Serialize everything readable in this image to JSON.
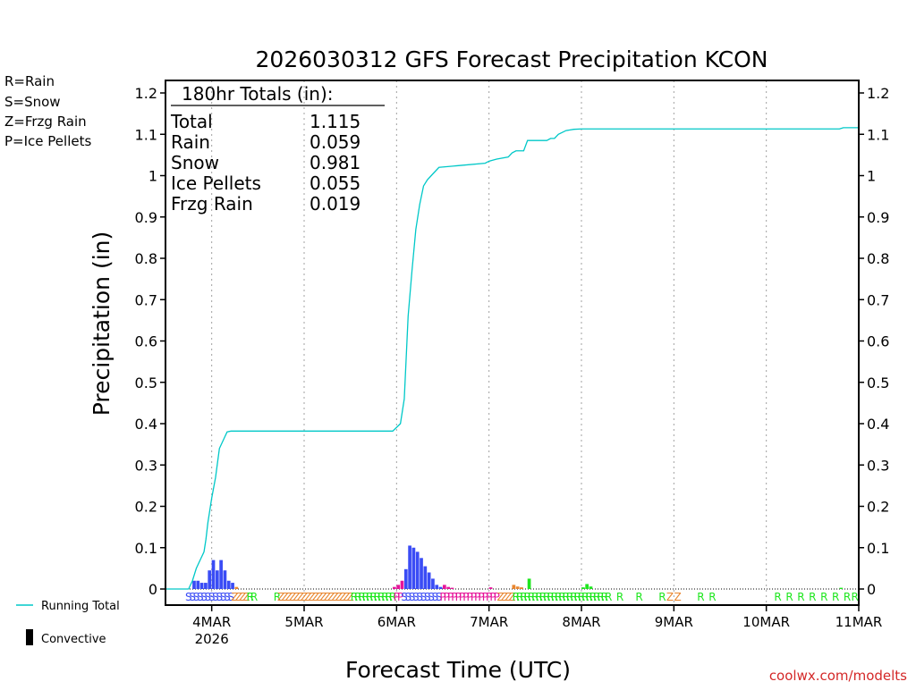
{
  "chart_data": {
    "type": "area",
    "title": "2026030312 GFS Forecast Precipitation KCON",
    "xlabel": "Forecast Time (UTC)",
    "ylabel": "Precipitation  (in)",
    "x_unit": "hours since 2026-03-04 00Z",
    "xlim": [
      -12,
      168
    ],
    "ylim": [
      0,
      1.2
    ],
    "y_ticks": [
      0,
      0.1,
      0.2,
      0.3,
      0.4,
      0.5,
      0.6,
      0.7,
      0.8,
      0.9,
      1,
      1.1,
      1.2
    ],
    "y_tick_labels": [
      "0",
      "0.1",
      "0.2",
      "0.3",
      "0.4",
      "0.5",
      "0.6",
      "0.7",
      "0.8",
      "0.9",
      "1",
      "1.1",
      "1.2"
    ],
    "x_ticks": [
      {
        "hour": 0,
        "label": "4MAR",
        "sublabel": "2026"
      },
      {
        "hour": 24,
        "label": "5MAR"
      },
      {
        "hour": 48,
        "label": "6MAR"
      },
      {
        "hour": 72,
        "label": "7MAR"
      },
      {
        "hour": 96,
        "label": "8MAR"
      },
      {
        "hour": 120,
        "label": "9MAR"
      },
      {
        "hour": 144,
        "label": "10MAR"
      },
      {
        "hour": 168,
        "label": "11MAR"
      }
    ],
    "series": [
      {
        "name": "Running Total",
        "color": "#00c8c8",
        "points": [
          [
            -12,
            0
          ],
          [
            -6,
            0
          ],
          [
            -5,
            0.02
          ],
          [
            -4,
            0.05
          ],
          [
            -3,
            0.07
          ],
          [
            -2,
            0.09
          ],
          [
            -1.5,
            0.12
          ],
          [
            -1,
            0.16
          ],
          [
            0,
            0.22
          ],
          [
            1,
            0.27
          ],
          [
            2,
            0.34
          ],
          [
            3,
            0.36
          ],
          [
            4,
            0.38
          ],
          [
            5,
            0.382
          ],
          [
            47,
            0.382
          ],
          [
            49,
            0.4
          ],
          [
            50,
            0.46
          ],
          [
            50.5,
            0.56
          ],
          [
            51,
            0.66
          ],
          [
            52,
            0.77
          ],
          [
            53,
            0.87
          ],
          [
            54,
            0.93
          ],
          [
            55,
            0.975
          ],
          [
            56,
            0.99
          ],
          [
            57,
            1.0
          ],
          [
            58,
            1.01
          ],
          [
            59,
            1.02
          ],
          [
            65,
            1.025
          ],
          [
            71,
            1.03
          ],
          [
            72,
            1.035
          ],
          [
            74,
            1.04
          ],
          [
            77,
            1.045
          ],
          [
            78,
            1.055
          ],
          [
            79,
            1.06
          ],
          [
            81,
            1.06
          ],
          [
            82,
            1.085
          ],
          [
            86,
            1.085
          ],
          [
            87,
            1.085
          ],
          [
            88,
            1.09
          ],
          [
            89,
            1.09
          ],
          [
            90,
            1.1
          ],
          [
            92,
            1.109
          ],
          [
            94,
            1.112
          ],
          [
            96,
            1.113
          ],
          [
            163,
            1.113
          ],
          [
            164,
            1.116
          ],
          [
            168,
            1.116
          ]
        ]
      }
    ],
    "bars": {
      "step_hours": 1,
      "items": [
        {
          "x": -5,
          "v": 0.02,
          "t": "S"
        },
        {
          "x": -4,
          "v": 0.02,
          "t": "S"
        },
        {
          "x": -3,
          "v": 0.015,
          "t": "S"
        },
        {
          "x": -2,
          "v": 0.015,
          "t": "S"
        },
        {
          "x": -1,
          "v": 0.045,
          "t": "S"
        },
        {
          "x": 0,
          "v": 0.07,
          "t": "S"
        },
        {
          "x": 1,
          "v": 0.045,
          "t": "S"
        },
        {
          "x": 2,
          "v": 0.07,
          "t": "S"
        },
        {
          "x": 3,
          "v": 0.045,
          "t": "S"
        },
        {
          "x": 4,
          "v": 0.02,
          "t": "S"
        },
        {
          "x": 5,
          "v": 0.015,
          "t": "S"
        },
        {
          "x": 6,
          "v": 0.005,
          "t": "Z"
        },
        {
          "x": 47,
          "v": 0.005,
          "t": "P"
        },
        {
          "x": 48,
          "v": 0.01,
          "t": "P"
        },
        {
          "x": 49,
          "v": 0.02,
          "t": "P"
        },
        {
          "x": 50,
          "v": 0.048,
          "t": "S"
        },
        {
          "x": 51,
          "v": 0.105,
          "t": "S"
        },
        {
          "x": 52,
          "v": 0.1,
          "t": "S"
        },
        {
          "x": 53,
          "v": 0.09,
          "t": "S"
        },
        {
          "x": 54,
          "v": 0.075,
          "t": "S"
        },
        {
          "x": 55,
          "v": 0.055,
          "t": "S"
        },
        {
          "x": 56,
          "v": 0.04,
          "t": "S"
        },
        {
          "x": 57,
          "v": 0.025,
          "t": "S"
        },
        {
          "x": 58,
          "v": 0.01,
          "t": "S"
        },
        {
          "x": 59,
          "v": 0.005,
          "t": "S"
        },
        {
          "x": 60,
          "v": 0.01,
          "t": "P"
        },
        {
          "x": 61,
          "v": 0.005,
          "t": "P"
        },
        {
          "x": 62,
          "v": 0.003,
          "t": "P"
        },
        {
          "x": 72,
          "v": 0.004,
          "t": "P"
        },
        {
          "x": 78,
          "v": 0.01,
          "t": "Z"
        },
        {
          "x": 79,
          "v": 0.006,
          "t": "Z"
        },
        {
          "x": 80,
          "v": 0.004,
          "t": "Z"
        },
        {
          "x": 82,
          "v": 0.025,
          "t": "R"
        },
        {
          "x": 96,
          "v": 0.004,
          "t": "R"
        },
        {
          "x": 97,
          "v": 0.012,
          "t": "R"
        },
        {
          "x": 98,
          "v": 0.006,
          "t": "R"
        },
        {
          "x": 163,
          "v": 0.003,
          "t": "R"
        }
      ]
    },
    "ptype_strip": [
      {
        "x": -6,
        "c": "S"
      },
      {
        "x": -5,
        "c": "S"
      },
      {
        "x": -4,
        "c": "S"
      },
      {
        "x": -3,
        "c": "S"
      },
      {
        "x": -2,
        "c": "S"
      },
      {
        "x": -1,
        "c": "S"
      },
      {
        "x": 0,
        "c": "S"
      },
      {
        "x": 1,
        "c": "S"
      },
      {
        "x": 2,
        "c": "S"
      },
      {
        "x": 3,
        "c": "S"
      },
      {
        "x": 4,
        "c": "S"
      },
      {
        "x": 5,
        "c": "S"
      },
      {
        "x": 6,
        "c": "Z"
      },
      {
        "x": 7,
        "c": "Z"
      },
      {
        "x": 8,
        "c": "Z"
      },
      {
        "x": 9,
        "c": "Z"
      },
      {
        "x": 10,
        "c": "R"
      },
      {
        "x": 11,
        "c": "R"
      },
      {
        "x": 17,
        "c": "R"
      },
      {
        "x": 18,
        "c": "Z"
      },
      {
        "x": 19,
        "c": "Z"
      },
      {
        "x": 20,
        "c": "Z"
      },
      {
        "x": 21,
        "c": "Z"
      },
      {
        "x": 22,
        "c": "Z"
      },
      {
        "x": 23,
        "c": "Z"
      },
      {
        "x": 24,
        "c": "Z"
      },
      {
        "x": 25,
        "c": "Z"
      },
      {
        "x": 26,
        "c": "Z"
      },
      {
        "x": 27,
        "c": "Z"
      },
      {
        "x": 28,
        "c": "Z"
      },
      {
        "x": 29,
        "c": "Z"
      },
      {
        "x": 30,
        "c": "Z"
      },
      {
        "x": 31,
        "c": "Z"
      },
      {
        "x": 32,
        "c": "Z"
      },
      {
        "x": 33,
        "c": "Z"
      },
      {
        "x": 34,
        "c": "Z"
      },
      {
        "x": 35,
        "c": "Z"
      },
      {
        "x": 36,
        "c": "Z"
      },
      {
        "x": 37,
        "c": "R"
      },
      {
        "x": 38,
        "c": "R"
      },
      {
        "x": 39,
        "c": "R"
      },
      {
        "x": 40,
        "c": "R"
      },
      {
        "x": 41,
        "c": "R"
      },
      {
        "x": 42,
        "c": "R"
      },
      {
        "x": 43,
        "c": "R"
      },
      {
        "x": 44,
        "c": "R"
      },
      {
        "x": 45,
        "c": "R"
      },
      {
        "x": 46,
        "c": "R"
      },
      {
        "x": 47,
        "c": "R"
      },
      {
        "x": 48,
        "c": "P"
      },
      {
        "x": 49,
        "c": "P"
      },
      {
        "x": 50,
        "c": "S"
      },
      {
        "x": 51,
        "c": "S"
      },
      {
        "x": 52,
        "c": "S"
      },
      {
        "x": 53,
        "c": "S"
      },
      {
        "x": 54,
        "c": "S"
      },
      {
        "x": 55,
        "c": "S"
      },
      {
        "x": 56,
        "c": "S"
      },
      {
        "x": 57,
        "c": "S"
      },
      {
        "x": 58,
        "c": "S"
      },
      {
        "x": 59,
        "c": "S"
      },
      {
        "x": 60,
        "c": "P"
      },
      {
        "x": 61,
        "c": "P"
      },
      {
        "x": 62,
        "c": "P"
      },
      {
        "x": 63,
        "c": "P"
      },
      {
        "x": 64,
        "c": "P"
      },
      {
        "x": 65,
        "c": "P"
      },
      {
        "x": 66,
        "c": "P"
      },
      {
        "x": 67,
        "c": "P"
      },
      {
        "x": 68,
        "c": "P"
      },
      {
        "x": 69,
        "c": "P"
      },
      {
        "x": 70,
        "c": "P"
      },
      {
        "x": 71,
        "c": "P"
      },
      {
        "x": 72,
        "c": "P"
      },
      {
        "x": 73,
        "c": "P"
      },
      {
        "x": 74,
        "c": "P"
      },
      {
        "x": 75,
        "c": "Z"
      },
      {
        "x": 76,
        "c": "Z"
      },
      {
        "x": 77,
        "c": "Z"
      },
      {
        "x": 78,
        "c": "Z"
      },
      {
        "x": 79,
        "c": "R"
      },
      {
        "x": 80,
        "c": "R"
      },
      {
        "x": 81,
        "c": "R"
      },
      {
        "x": 82,
        "c": "R"
      },
      {
        "x": 83,
        "c": "R"
      },
      {
        "x": 84,
        "c": "R"
      },
      {
        "x": 85,
        "c": "R"
      },
      {
        "x": 86,
        "c": "R"
      },
      {
        "x": 87,
        "c": "R"
      },
      {
        "x": 88,
        "c": "R"
      },
      {
        "x": 89,
        "c": "R"
      },
      {
        "x": 90,
        "c": "R"
      },
      {
        "x": 91,
        "c": "R"
      },
      {
        "x": 92,
        "c": "R"
      },
      {
        "x": 93,
        "c": "R"
      },
      {
        "x": 94,
        "c": "R"
      },
      {
        "x": 95,
        "c": "R"
      },
      {
        "x": 96,
        "c": "R"
      },
      {
        "x": 97,
        "c": "R"
      },
      {
        "x": 98,
        "c": "R"
      },
      {
        "x": 99,
        "c": "R"
      },
      {
        "x": 100,
        "c": "R"
      },
      {
        "x": 101,
        "c": "R"
      },
      {
        "x": 102,
        "c": "R"
      },
      {
        "x": 103,
        "c": "R"
      },
      {
        "x": 106,
        "c": "R"
      },
      {
        "x": 111,
        "c": "R"
      },
      {
        "x": 117,
        "c": "R"
      },
      {
        "x": 119,
        "c": "Z"
      },
      {
        "x": 121,
        "c": "Z"
      },
      {
        "x": 127,
        "c": "R"
      },
      {
        "x": 130,
        "c": "R"
      },
      {
        "x": 147,
        "c": "R"
      },
      {
        "x": 150,
        "c": "R"
      },
      {
        "x": 153,
        "c": "R"
      },
      {
        "x": 156,
        "c": "R"
      },
      {
        "x": 159,
        "c": "R"
      },
      {
        "x": 162,
        "c": "R"
      },
      {
        "x": 165,
        "c": "R"
      },
      {
        "x": 167,
        "c": "R"
      }
    ],
    "ptype_colors": {
      "R": "#1ee61e",
      "S": "#3a4cf5",
      "Z": "#e8862f",
      "P": "#e6149a"
    },
    "totals_box": {
      "header": "180hr Totals (in):",
      "rows": [
        {
          "label": "Total",
          "value": "1.115"
        },
        {
          "label": "Rain",
          "value": "0.059"
        },
        {
          "label": "Snow",
          "value": "0.981"
        },
        {
          "label": "Ice Pellets",
          "value": "0.055"
        },
        {
          "label": "Frzg Rain",
          "value": "0.019"
        }
      ]
    },
    "ptype_legend": [
      {
        "text": "R=Rain",
        "color": "#1ee61e"
      },
      {
        "text": "S=Snow",
        "color": "#3a4cf5"
      },
      {
        "text": "Z=Frzg Rain",
        "color": "#e8862f"
      },
      {
        "text": "P=Ice Pellets",
        "color": "#e6149a"
      }
    ],
    "bottom_legend": [
      {
        "text": "Running Total",
        "color": "#00c8c8",
        "kind": "line"
      },
      {
        "text": "Convective",
        "color": "#000000",
        "kind": "bar"
      }
    ],
    "watermark": "coolwx.com/modelts",
    "grid": "dotted vertical at day boundaries"
  }
}
